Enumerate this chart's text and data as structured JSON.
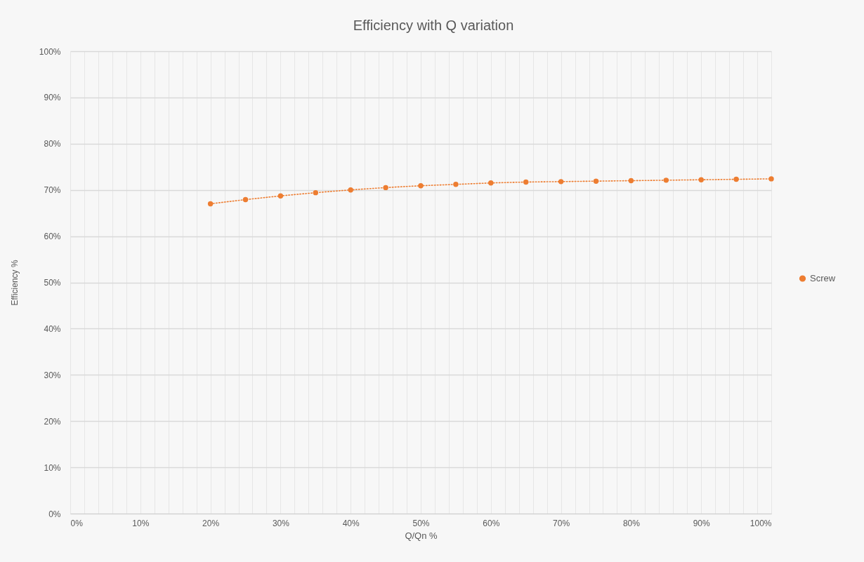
{
  "chart_data": {
    "type": "line",
    "title": "Efficiency with Q variation",
    "xlabel": "Q/Qn %",
    "ylabel": "Efficiency %",
    "x": [
      20,
      25,
      30,
      35,
      40,
      45,
      50,
      55,
      60,
      65,
      70,
      75,
      80,
      85,
      90,
      95,
      100
    ],
    "series": [
      {
        "name": "Screw",
        "color": "#ed7d31",
        "values": [
          67.0,
          67.9,
          68.7,
          69.4,
          70.0,
          70.5,
          70.9,
          71.2,
          71.5,
          71.7,
          71.8,
          71.9,
          72.0,
          72.1,
          72.2,
          72.3,
          72.4
        ]
      }
    ],
    "xlim": [
      0,
      100
    ],
    "xticks": [
      {
        "value": 0,
        "label": "0%"
      },
      {
        "value": 2,
        "label": null
      },
      {
        "value": 4,
        "label": null
      },
      {
        "value": 6,
        "label": null
      },
      {
        "value": 8,
        "label": null
      },
      {
        "value": 10,
        "label": "10%"
      },
      {
        "value": 12,
        "label": null
      },
      {
        "value": 14,
        "label": null
      },
      {
        "value": 16,
        "label": null
      },
      {
        "value": 18,
        "label": null
      },
      {
        "value": 20,
        "label": "20%"
      },
      {
        "value": 22,
        "label": null
      },
      {
        "value": 24,
        "label": null
      },
      {
        "value": 26,
        "label": null
      },
      {
        "value": 28,
        "label": null
      },
      {
        "value": 30,
        "label": "30%"
      },
      {
        "value": 32,
        "label": null
      },
      {
        "value": 34,
        "label": null
      },
      {
        "value": 36,
        "label": null
      },
      {
        "value": 38,
        "label": null
      },
      {
        "value": 40,
        "label": "40%"
      },
      {
        "value": 42,
        "label": null
      },
      {
        "value": 44,
        "label": null
      },
      {
        "value": 46,
        "label": null
      },
      {
        "value": 48,
        "label": null
      },
      {
        "value": 50,
        "label": "50%"
      },
      {
        "value": 52,
        "label": null
      },
      {
        "value": 54,
        "label": null
      },
      {
        "value": 56,
        "label": null
      },
      {
        "value": 58,
        "label": null
      },
      {
        "value": 60,
        "label": "60%"
      },
      {
        "value": 62,
        "label": null
      },
      {
        "value": 64,
        "label": null
      },
      {
        "value": 66,
        "label": null
      },
      {
        "value": 68,
        "label": null
      },
      {
        "value": 70,
        "label": "70%"
      },
      {
        "value": 72,
        "label": null
      },
      {
        "value": 74,
        "label": null
      },
      {
        "value": 76,
        "label": null
      },
      {
        "value": 78,
        "label": null
      },
      {
        "value": 80,
        "label": "80%"
      },
      {
        "value": 82,
        "label": null
      },
      {
        "value": 84,
        "label": null
      },
      {
        "value": 86,
        "label": null
      },
      {
        "value": 88,
        "label": null
      },
      {
        "value": 90,
        "label": "90%"
      },
      {
        "value": 92,
        "label": null
      },
      {
        "value": 94,
        "label": null
      },
      {
        "value": 96,
        "label": null
      },
      {
        "value": 98,
        "label": null
      },
      {
        "value": 100,
        "label": "100%"
      }
    ],
    "ylim": [
      0,
      100
    ],
    "yticks": [
      {
        "value": 0,
        "label": "0%"
      },
      {
        "value": 10,
        "label": "10%"
      },
      {
        "value": 20,
        "label": "20%"
      },
      {
        "value": 30,
        "label": "30%"
      },
      {
        "value": 40,
        "label": "40%"
      },
      {
        "value": 50,
        "label": "50%"
      },
      {
        "value": 60,
        "label": "60%"
      },
      {
        "value": 70,
        "label": "70%"
      },
      {
        "value": 80,
        "label": "80%"
      },
      {
        "value": 90,
        "label": "90%"
      },
      {
        "value": 100,
        "label": "100%"
      }
    ],
    "grid": true,
    "legend": "right",
    "marker": "circle",
    "line_style": "dotted"
  }
}
